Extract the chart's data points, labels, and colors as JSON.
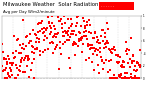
{
  "title": "Milwaukee Weather  Solar Radiation",
  "subtitle": "Avg per Day W/m2/minute",
  "title_fontsize": 3.8,
  "background_color": "#ffffff",
  "plot_bg_color": "#ffffff",
  "grid_color": "#c8c8c8",
  "dot_color_red": "#ff0000",
  "dot_color_black": "#000000",
  "legend_box_color": "#ff0000",
  "legend_text": "- - - - - -",
  "ylim_min": 0,
  "ylim_max": 1,
  "n_days": 365,
  "seed": 99,
  "month_days": [
    0,
    31,
    59,
    90,
    120,
    151,
    181,
    212,
    243,
    273,
    304,
    334,
    365
  ],
  "ytick_values": [
    0.0,
    0.2,
    0.4,
    0.6,
    0.8,
    1.0
  ],
  "ytick_labels": [
    "0",
    ".2",
    ".4",
    ".6",
    ".8",
    "1"
  ]
}
